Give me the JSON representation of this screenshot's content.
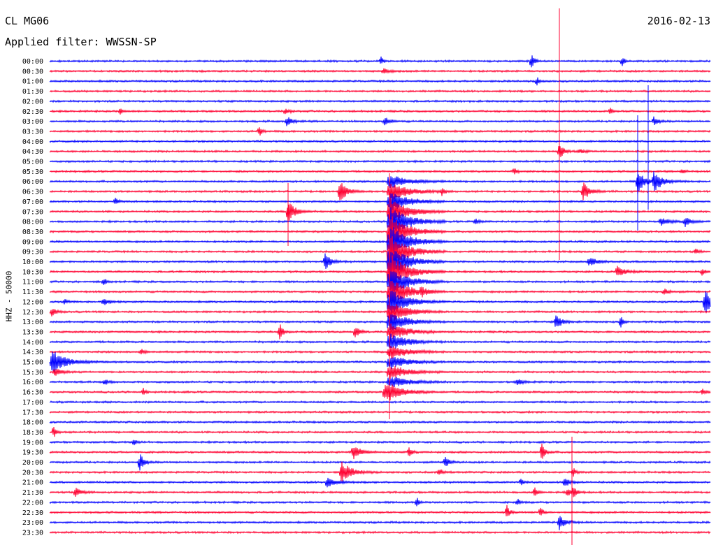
{
  "header": {
    "station": "CL MG06",
    "date": "2016-02-13",
    "filter": "Applied filter: WWSSN-SP"
  },
  "chart_data": {
    "type": "line",
    "ylabel": "HHZ - 50000",
    "colors": [
      "#0000ff",
      "#ff0030"
    ],
    "rows": [
      "00:00",
      "00:30",
      "01:00",
      "01:30",
      "02:00",
      "02:30",
      "03:00",
      "03:30",
      "04:00",
      "04:30",
      "05:00",
      "05:30",
      "06:00",
      "06:30",
      "07:00",
      "07:30",
      "08:00",
      "08:30",
      "09:00",
      "09:30",
      "10:00",
      "10:30",
      "11:00",
      "11:30",
      "12:00",
      "12:30",
      "13:00",
      "13:30",
      "14:00",
      "14:30",
      "15:00",
      "15:30",
      "16:00",
      "16:30",
      "17:00",
      "17:30",
      "18:00",
      "18:30",
      "19:00",
      "19:30",
      "20:00",
      "20:30",
      "21:00",
      "21:30",
      "22:00",
      "22:30",
      "23:00",
      "23:30"
    ]
  }
}
